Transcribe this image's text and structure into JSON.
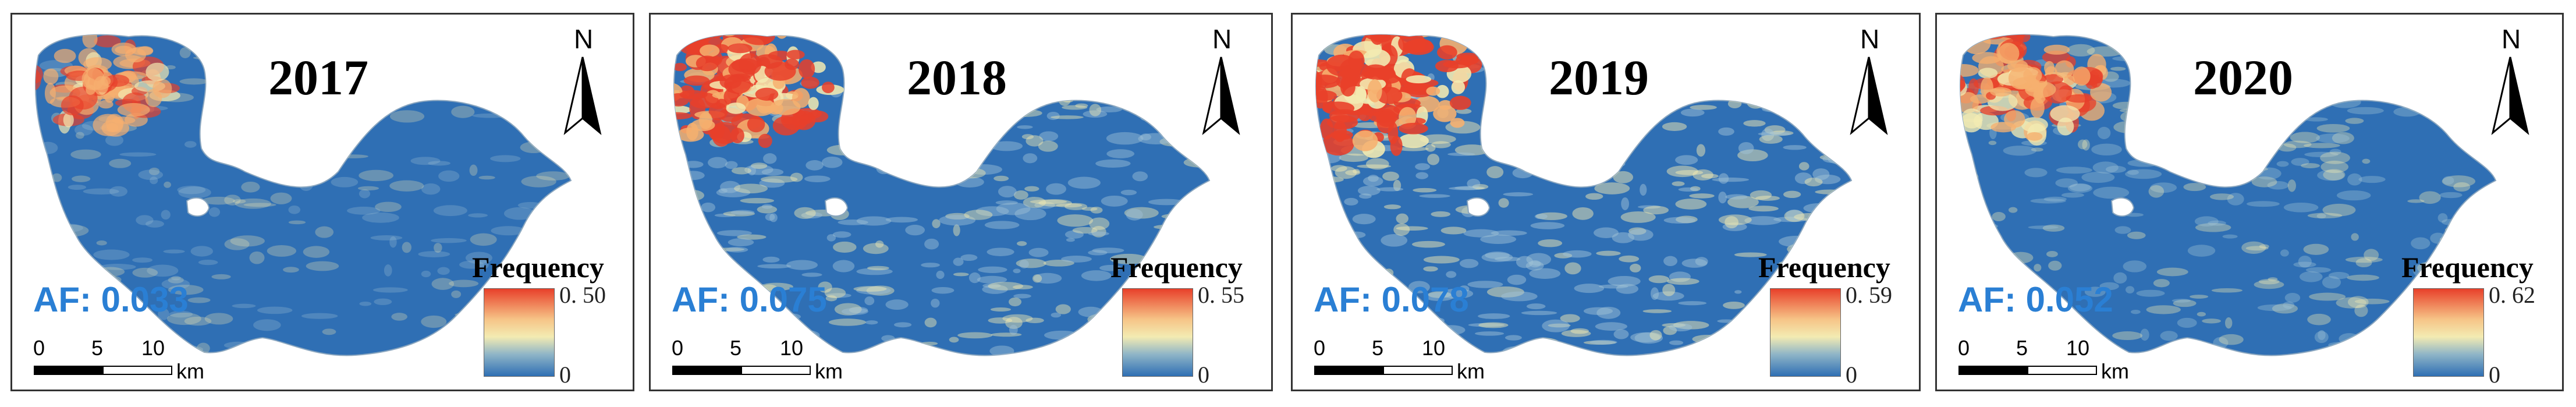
{
  "panels": [
    {
      "year": "2017",
      "af_label": "AF:",
      "af_value": "0.033",
      "legend_title": "Frequency",
      "legend_max": "0. 50",
      "legend_min": "0",
      "hot": 0.35
    },
    {
      "year": "2018",
      "af_label": "AF:",
      "af_value": "0.075",
      "legend_title": "Frequency",
      "legend_max": "0. 55",
      "legend_min": "0",
      "hot": 0.75
    },
    {
      "year": "2019",
      "af_label": "AF:",
      "af_value": "0.078",
      "legend_title": "Frequency",
      "legend_max": "0. 59",
      "legend_min": "0",
      "hot": 0.85
    },
    {
      "year": "2020",
      "af_label": "AF:",
      "af_value": "0.052",
      "legend_title": "Frequency",
      "legend_max": "0. 62",
      "legend_min": "0",
      "hot": 0.55
    }
  ],
  "north_label": "N",
  "scale_ticks": [
    "0",
    "5",
    "10"
  ],
  "scale_unit": "km",
  "colors": {
    "low": "#2f6fb4",
    "mid": "#f3ebb2",
    "high": "#e8402a",
    "af_text": "#2a7fd4",
    "border": "#333333"
  }
}
